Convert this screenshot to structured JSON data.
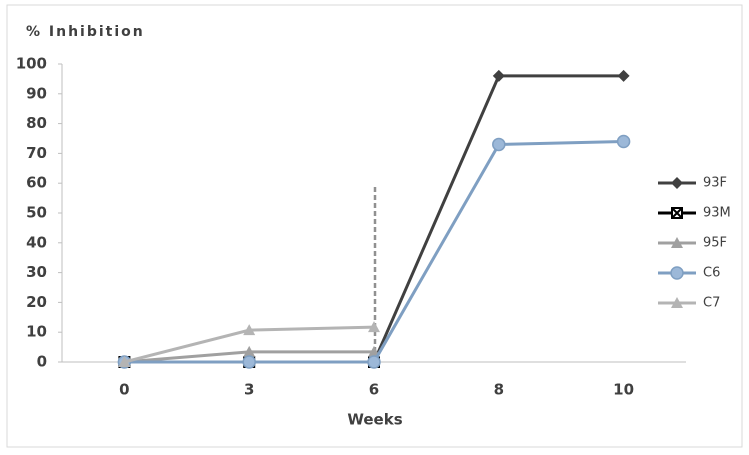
{
  "chart_data": {
    "type": "line",
    "y_label": "% Inhibition",
    "x_label": "Weeks",
    "categories": [
      "0",
      "3",
      "6",
      "8",
      "10"
    ],
    "series": [
      {
        "name": "93F",
        "color": "#404040",
        "marker": "diamond",
        "values": [
          0,
          0,
          0,
          96,
          96
        ]
      },
      {
        "name": "93M",
        "color": "#000000",
        "marker": "square-x",
        "values": [
          0,
          0,
          0,
          null,
          null
        ]
      },
      {
        "name": "95F",
        "color": "#a0a0a0",
        "marker": "triangle",
        "values": [
          0,
          3.4,
          3.4,
          null,
          null
        ]
      },
      {
        "name": "C6",
        "color": "#7f9fc2",
        "marker": "circle",
        "values": [
          0,
          0,
          0,
          73,
          74
        ]
      },
      {
        "name": "C7",
        "color": "#b4b4b4",
        "marker": "triangle",
        "values": [
          0,
          10.7,
          11.7,
          null,
          null
        ]
      }
    ],
    "ylim": [
      0,
      100
    ],
    "yticks": [
      0,
      10,
      20,
      30,
      40,
      50,
      60,
      70,
      80,
      90,
      100
    ],
    "legend": "right"
  }
}
